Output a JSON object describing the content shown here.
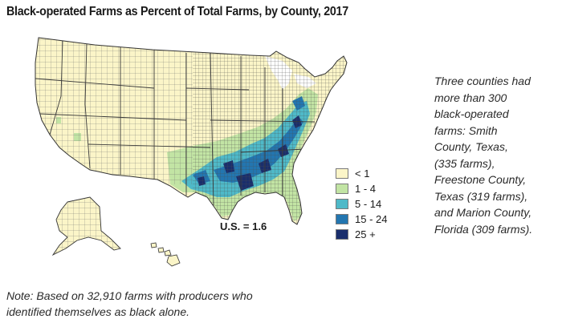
{
  "title": "Black-operated Farms as Percent of Total Farms, by County, 2017",
  "legend": {
    "items": [
      {
        "label": "< 1",
        "color": "#fbf5c8"
      },
      {
        "label": "1 - 4",
        "color": "#c2e4a4"
      },
      {
        "label": "5 - 14",
        "color": "#4fb9c8"
      },
      {
        "label": "15 - 24",
        "color": "#2376b0"
      },
      {
        "label": "25 +",
        "color": "#1a2e6c"
      }
    ]
  },
  "us_stat": "U.S. = 1.6",
  "side_note": {
    "lines": [
      "Three counties had",
      "more than 300",
      "black-operated",
      "farms: Smith",
      "County, Texas,",
      "(335 farms),",
      "Freestone County,",
      "Texas (319 farms),",
      "and Marion County,",
      "Florida (309 farms)."
    ]
  },
  "footnote": {
    "lines": [
      "Note: Based on 32,910 farms with producers who",
      "identified themselves as black alone."
    ]
  }
}
